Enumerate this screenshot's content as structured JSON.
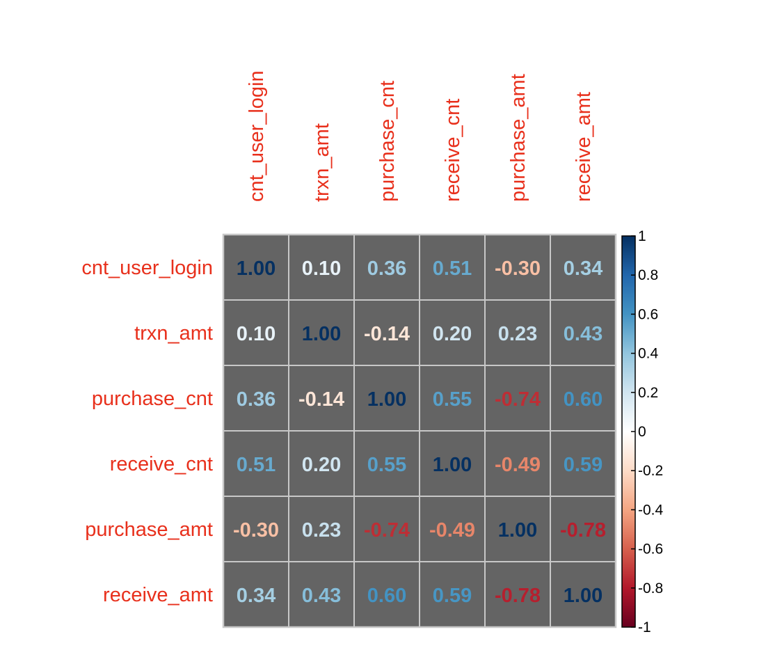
{
  "chart_data": {
    "type": "heatmap",
    "title": "",
    "xlabel": "",
    "ylabel": "",
    "row_labels": [
      "cnt_user_login",
      "trxn_amt",
      "purchase_cnt",
      "receive_cnt",
      "purchase_amt",
      "receive_amt"
    ],
    "col_labels": [
      "cnt_user_login",
      "trxn_amt",
      "purchase_cnt",
      "receive_cnt",
      "purchase_amt",
      "receive_amt"
    ],
    "values": [
      [
        1.0,
        0.1,
        0.36,
        0.51,
        -0.3,
        0.34
      ],
      [
        0.1,
        1.0,
        -0.14,
        0.2,
        0.23,
        0.43
      ],
      [
        0.36,
        -0.14,
        1.0,
        0.55,
        -0.74,
        0.6
      ],
      [
        0.51,
        0.2,
        0.55,
        1.0,
        -0.49,
        0.59
      ],
      [
        -0.3,
        0.23,
        -0.74,
        -0.49,
        1.0,
        -0.78
      ],
      [
        0.34,
        0.43,
        0.6,
        0.59,
        -0.78,
        1.0
      ]
    ],
    "value_labels": [
      [
        "1.00",
        "0.10",
        "0.36",
        "0.51",
        "-0.30",
        "0.34"
      ],
      [
        "0.10",
        "1.00",
        "-0.14",
        "0.20",
        "0.23",
        "0.43"
      ],
      [
        "0.36",
        "-0.14",
        "1.00",
        "0.55",
        "-0.74",
        "0.60"
      ],
      [
        "0.51",
        "0.20",
        "0.55",
        "1.00",
        "-0.49",
        "0.59"
      ],
      [
        "-0.30",
        "0.23",
        "-0.74",
        "-0.49",
        "1.00",
        "-0.78"
      ],
      [
        "0.34",
        "0.43",
        "0.60",
        "0.59",
        "-0.78",
        "1.00"
      ]
    ],
    "colorbar": {
      "range": [
        -1,
        1
      ],
      "ticks": [
        1,
        0.8,
        0.6,
        0.4,
        0.2,
        0,
        -0.2,
        -0.4,
        -0.6,
        -0.8,
        -1
      ],
      "tick_labels": [
        "1",
        "0.8",
        "0.6",
        "0.4",
        "0.2",
        "0",
        "-0.2",
        "-0.4",
        "-0.6",
        "-0.8",
        "-1"
      ],
      "placement": "right"
    },
    "colors": {
      "cell_background": "#646464",
      "grid_line": "#c8c8c8",
      "label_color": "#e8301c",
      "palette": [
        "#67001f",
        "#b2182b",
        "#d6604d",
        "#f4a582",
        "#fddbc7",
        "#ffffff",
        "#d1e5f0",
        "#92c5de",
        "#4393c3",
        "#2166ac",
        "#053061"
      ]
    }
  }
}
